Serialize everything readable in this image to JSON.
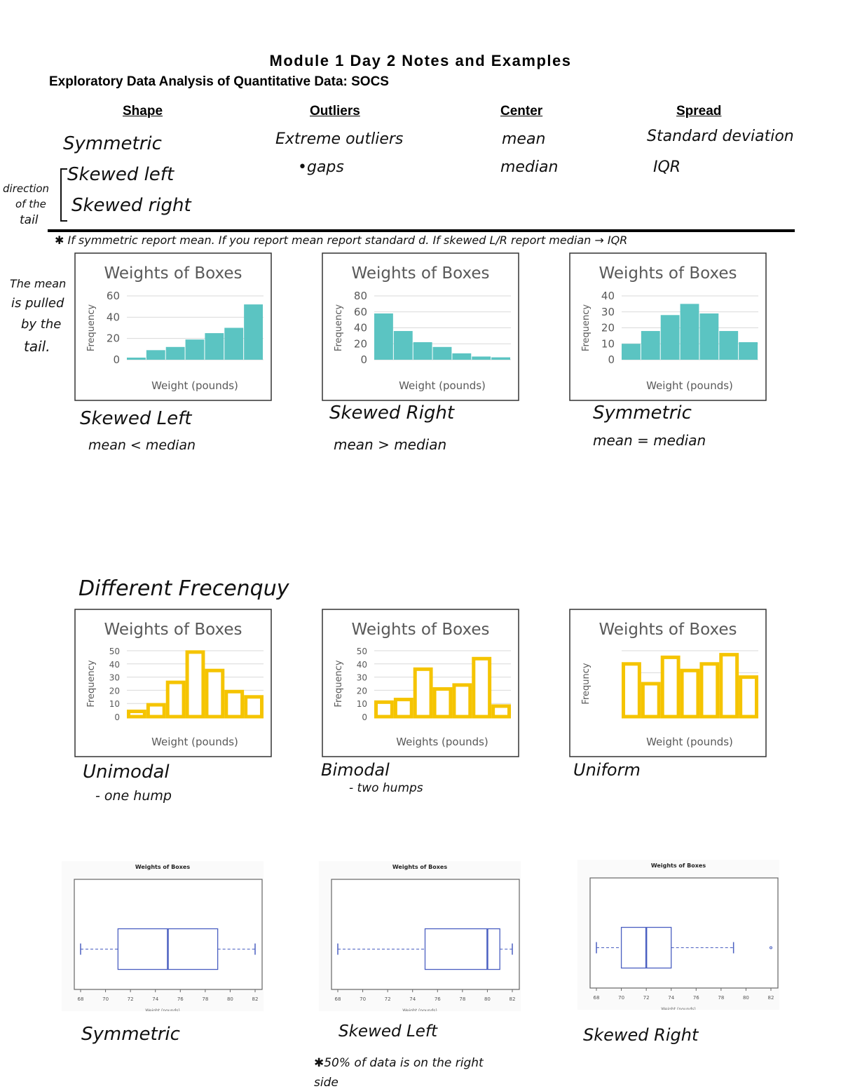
{
  "header": {
    "title": "Module 1 Day 2 Notes and Examples",
    "subtitle": "Exploratory Data Analysis of Quantitative Data: SOCS"
  },
  "columns": [
    {
      "heading": "Shape",
      "notes": [
        "Symmetric",
        "Skewed left",
        "Skewed right"
      ]
    },
    {
      "heading": "Outliers",
      "notes": [
        "Extreme outliers",
        "•gaps"
      ]
    },
    {
      "heading": "Center",
      "notes": [
        "mean",
        "median"
      ]
    },
    {
      "heading": "Spread",
      "notes": [
        "Standard deviation",
        "IQR"
      ]
    }
  ],
  "annotations": {
    "tail_note": [
      "direction",
      "of the",
      "tail"
    ],
    "rule_note": "✱ If symmetric report mean. If you report mean report standard d. If skewed L/R report median → IQR",
    "mean_note": [
      "The mean",
      "is pulled",
      "by the",
      "tail."
    ],
    "different_frequency": "Different Frecenquy"
  },
  "captions": [
    {
      "label": "Skewed Left",
      "note": "mean < median"
    },
    {
      "label": "Skewed Right",
      "note": "mean > median"
    },
    {
      "label": "Symmetric",
      "note": "mean = median"
    },
    {
      "label": "Unimodal",
      "note": "- one hump"
    },
    {
      "label": "Bimodal",
      "note": "- two humps"
    },
    {
      "label": "Uniform",
      "note": ""
    },
    {
      "label": "Symmetric",
      "note": ""
    },
    {
      "label": "Skewed Left",
      "note": "✱50% of data is on the right side"
    },
    {
      "label": "Skewed Right",
      "note": ""
    }
  ],
  "colors": {
    "teal": "#5bc4c2",
    "gold": "#f5c400",
    "box_blue": "#4a5fc1",
    "grid": "#d9d9d9"
  },
  "chart_data": [
    {
      "type": "bar",
      "style": "filled",
      "title": "Weights of Boxes",
      "xlabel": "Weight (pounds)",
      "ylabel": "Frequency",
      "ylim": [
        0,
        60
      ],
      "yticks": [
        "0",
        "20",
        "40",
        "60"
      ],
      "values": [
        2,
        9,
        12,
        19,
        25,
        30,
        52
      ],
      "grid": true
    },
    {
      "type": "bar",
      "style": "filled",
      "title": "Weights of Boxes",
      "xlabel": "Weight (pounds)",
      "ylabel": "Frequency",
      "ylim": [
        0,
        80
      ],
      "yticks": [
        "0",
        "20",
        "40",
        "60",
        "80"
      ],
      "values": [
        58,
        36,
        22,
        16,
        8,
        4,
        3
      ],
      "grid": true
    },
    {
      "type": "bar",
      "style": "filled",
      "title": "Weights of Boxes",
      "xlabel": "Weight (pounds)",
      "ylabel": "Frequency",
      "ylim": [
        0,
        40
      ],
      "yticks": [
        "0",
        "10",
        "20",
        "30",
        "40"
      ],
      "values": [
        10,
        18,
        28,
        35,
        29,
        18,
        11
      ],
      "grid": true
    },
    {
      "type": "bar",
      "style": "outline",
      "title": "Weights of Boxes",
      "xlabel": "Weight (pounds)",
      "ylabel": "Frequency",
      "ylim": [
        0,
        50
      ],
      "yticks": [
        "0",
        "10",
        "20",
        "30",
        "40",
        "50"
      ],
      "values": [
        4,
        9,
        26,
        49,
        35,
        19,
        15
      ],
      "grid": true
    },
    {
      "type": "bar",
      "style": "outline",
      "title": "Weights of Boxes",
      "xlabel": "Weights (pounds)",
      "ylabel": "Frequency",
      "ylim": [
        0,
        50
      ],
      "yticks": [
        "0",
        "10",
        "20",
        "30",
        "40",
        "50"
      ],
      "values": [
        11,
        13,
        36,
        21,
        24,
        44,
        8
      ],
      "grid": true
    },
    {
      "type": "bar",
      "style": "outline",
      "title": "Weights of Boxes",
      "xlabel": "Weight (pounds)",
      "ylabel": "Frequncy",
      "ylim": [
        0,
        50
      ],
      "yticks": [],
      "values": [
        40,
        25,
        45,
        35,
        40,
        47,
        30
      ],
      "grid": true
    },
    {
      "type": "boxplot",
      "title": "Weights of Boxes",
      "xlabel": "Weight (pounds)",
      "xlim": [
        68,
        82
      ],
      "xticks": [
        "68",
        "70",
        "72",
        "74",
        "76",
        "78",
        "80",
        "82"
      ],
      "min": 68,
      "q1": 71,
      "median": 75,
      "q3": 79,
      "max": 82,
      "outliers": []
    },
    {
      "type": "boxplot",
      "title": "Weights of Boxes",
      "xlabel": "Weight (pounds)",
      "xlim": [
        68,
        82
      ],
      "xticks": [
        "68",
        "70",
        "72",
        "74",
        "76",
        "78",
        "80",
        "82"
      ],
      "min": 68,
      "q1": 75,
      "median": 80,
      "q3": 81,
      "max": 82,
      "outliers": []
    },
    {
      "type": "boxplot",
      "title": "Weights of Boxes",
      "xlabel": "Weight (pounds)",
      "xlim": [
        68,
        82
      ],
      "xticks": [
        "68",
        "70",
        "72",
        "74",
        "76",
        "78",
        "80",
        "82"
      ],
      "min": 68,
      "q1": 70,
      "median": 72,
      "q3": 74,
      "max": 79,
      "outliers": [
        82
      ]
    }
  ]
}
